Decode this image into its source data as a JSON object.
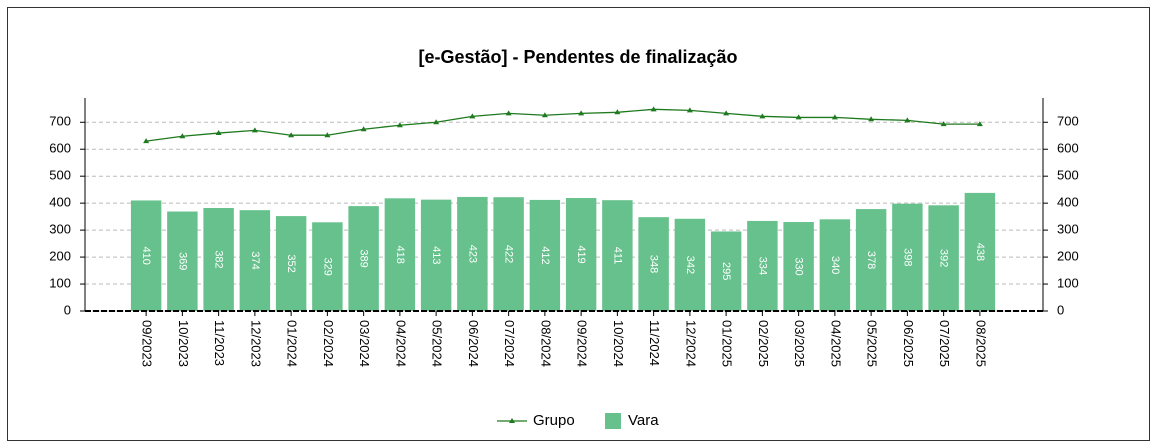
{
  "chart_data": {
    "type": "bar_line",
    "title": "[e-Gestão]  - Pendentes de finalização",
    "categories": [
      "09/2023",
      "10/2023",
      "11/2023",
      "12/2023",
      "01/2024",
      "02/2024",
      "03/2024",
      "04/2024",
      "05/2024",
      "06/2024",
      "07/2024",
      "08/2024",
      "09/2024",
      "10/2024",
      "11/2024",
      "12/2024",
      "01/2025",
      "02/2025",
      "03/2025",
      "04/2025",
      "05/2025",
      "06/2025",
      "07/2025",
      "08/2025"
    ],
    "series": [
      {
        "name": "Grupo",
        "type": "line",
        "color": "#1e7a1e",
        "values": [
          630,
          648,
          660,
          670,
          652,
          652,
          674,
          689,
          700,
          722,
          733,
          726,
          733,
          737,
          748,
          744,
          733,
          722,
          718,
          718,
          711,
          707,
          693,
          693
        ]
      },
      {
        "name": "Vara",
        "type": "bar",
        "color": "#66c18c",
        "values": [
          410,
          369,
          382,
          374,
          352,
          329,
          389,
          418,
          413,
          423,
          422,
          412,
          419,
          411,
          348,
          342,
          295,
          334,
          330,
          340,
          378,
          398,
          392,
          438
        ]
      }
    ],
    "ylim": [
      0,
      790
    ],
    "yticks": [
      0,
      100,
      200,
      300,
      400,
      500,
      600,
      700
    ],
    "y2lim": [
      0,
      790
    ],
    "y2ticks": [
      0,
      100,
      200,
      300,
      400,
      500,
      600,
      700
    ],
    "grid": true,
    "legend": "bottom"
  }
}
